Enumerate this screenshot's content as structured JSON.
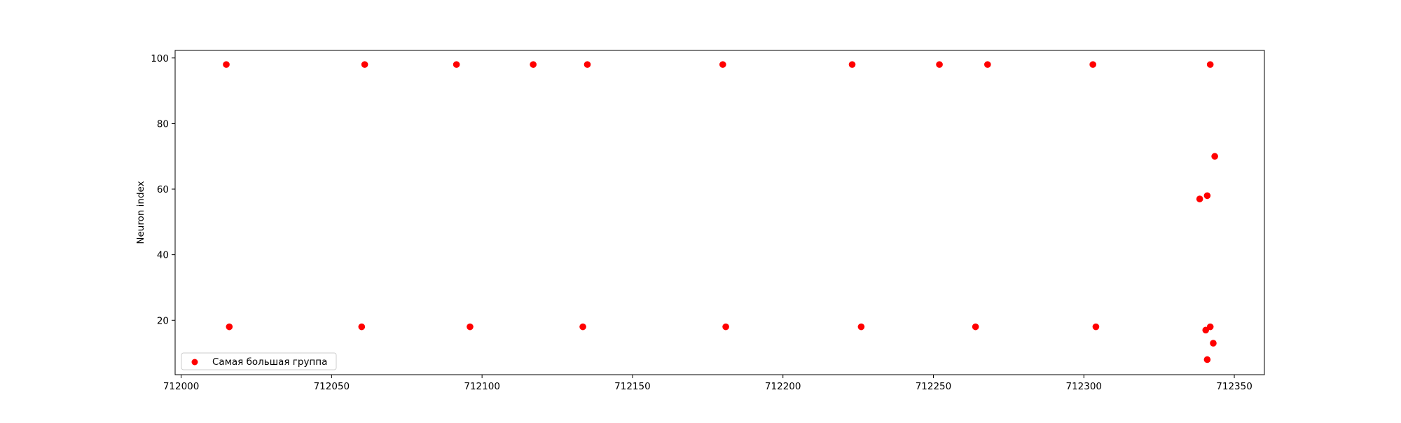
{
  "chart_data": {
    "type": "scatter",
    "title": "",
    "xlabel": "",
    "ylabel": "Neuron index",
    "xlim": [
      711998,
      712360
    ],
    "ylim": [
      3.4,
      102.3
    ],
    "x_ticks": [
      712000,
      712050,
      712100,
      712150,
      712200,
      712250,
      712300,
      712350
    ],
    "y_ticks": [
      20,
      40,
      60,
      80,
      100
    ],
    "grid": false,
    "legend_position": "lower-left",
    "series": [
      {
        "name": "Самая большая группа",
        "color": "#ff0000",
        "points": [
          {
            "x": 712015,
            "y": 98
          },
          {
            "x": 712061,
            "y": 98
          },
          {
            "x": 712091.5,
            "y": 98
          },
          {
            "x": 712117,
            "y": 98
          },
          {
            "x": 712135,
            "y": 98
          },
          {
            "x": 712180,
            "y": 98
          },
          {
            "x": 712223,
            "y": 98
          },
          {
            "x": 712252,
            "y": 98
          },
          {
            "x": 712268,
            "y": 98
          },
          {
            "x": 712303,
            "y": 98
          },
          {
            "x": 712342,
            "y": 98
          },
          {
            "x": 712016,
            "y": 18
          },
          {
            "x": 712060,
            "y": 18
          },
          {
            "x": 712096,
            "y": 18
          },
          {
            "x": 712133.5,
            "y": 18
          },
          {
            "x": 712181,
            "y": 18
          },
          {
            "x": 712226,
            "y": 18
          },
          {
            "x": 712264,
            "y": 18
          },
          {
            "x": 712304,
            "y": 18
          },
          {
            "x": 712342,
            "y": 18
          },
          {
            "x": 712343.5,
            "y": 70
          },
          {
            "x": 712338.5,
            "y": 57
          },
          {
            "x": 712341,
            "y": 58
          },
          {
            "x": 712340.5,
            "y": 17
          },
          {
            "x": 712343,
            "y": 13
          },
          {
            "x": 712341,
            "y": 8
          }
        ]
      }
    ]
  }
}
